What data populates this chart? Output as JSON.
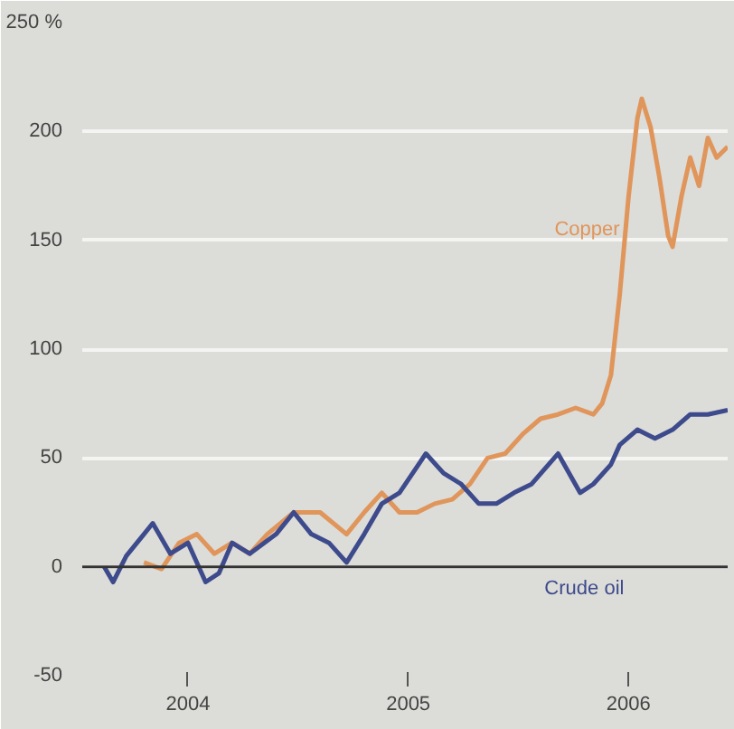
{
  "chart_data": {
    "type": "line",
    "xlim": [
      2003.52,
      2006.45
    ],
    "ylim": [
      -50,
      250
    ],
    "xticks": [
      2004,
      2005,
      2006
    ],
    "yticks": [
      -50,
      0,
      50,
      100,
      150,
      200,
      {
        "value": 250,
        "label": "250 %"
      }
    ],
    "grid": "y",
    "marker": "none",
    "line_style": "solid",
    "ref_lines": [
      {
        "axis": "y",
        "value": 0,
        "color": "#333333"
      }
    ],
    "series": [
      {
        "name": "Copper",
        "color": "#e0955a",
        "x": [
          2003.8,
          2003.88,
          2003.96,
          2004.04,
          2004.12,
          2004.2,
          2004.28,
          2004.36,
          2004.48,
          2004.6,
          2004.72,
          2004.8,
          2004.88,
          2004.96,
          2005.04,
          2005.12,
          2005.2,
          2005.28,
          2005.36,
          2005.44,
          2005.52,
          2005.6,
          2005.68,
          2005.76,
          2005.84,
          2005.88,
          2005.92,
          2005.96,
          2006.0,
          2006.04,
          2006.06,
          2006.1,
          2006.14,
          2006.18,
          2006.2,
          2006.24,
          2006.28,
          2006.32,
          2006.36,
          2006.4,
          2006.45
        ],
        "values": [
          2,
          -1,
          11,
          15,
          6,
          11,
          6,
          15,
          25,
          25,
          15,
          25,
          34,
          25,
          25,
          29,
          31,
          38,
          50,
          52,
          61,
          68,
          70,
          73,
          70,
          75,
          88,
          125,
          170,
          206,
          215,
          202,
          179,
          152,
          147,
          170,
          188,
          175,
          197,
          188,
          193
        ]
      },
      {
        "name": "Crude oil",
        "color": "#3d4a8c",
        "x": [
          2003.62,
          2003.66,
          2003.72,
          2003.8,
          2003.84,
          2003.92,
          2004.0,
          2004.08,
          2004.14,
          2004.2,
          2004.28,
          2004.4,
          2004.48,
          2004.56,
          2004.64,
          2004.72,
          2004.8,
          2004.88,
          2004.96,
          2005.08,
          2005.16,
          2005.24,
          2005.32,
          2005.4,
          2005.48,
          2005.56,
          2005.68,
          2005.78,
          2005.84,
          2005.92,
          2005.96,
          2006.04,
          2006.12,
          2006.2,
          2006.28,
          2006.36,
          2006.45
        ],
        "values": [
          0,
          -7,
          5,
          15,
          20,
          6,
          11,
          -7,
          -3,
          11,
          6,
          15,
          25,
          15,
          11,
          2,
          15,
          29,
          34,
          52,
          43,
          38,
          29,
          29,
          34,
          38,
          52,
          34,
          38,
          47,
          56,
          63,
          59,
          63,
          70,
          70,
          72
        ]
      }
    ]
  }
}
